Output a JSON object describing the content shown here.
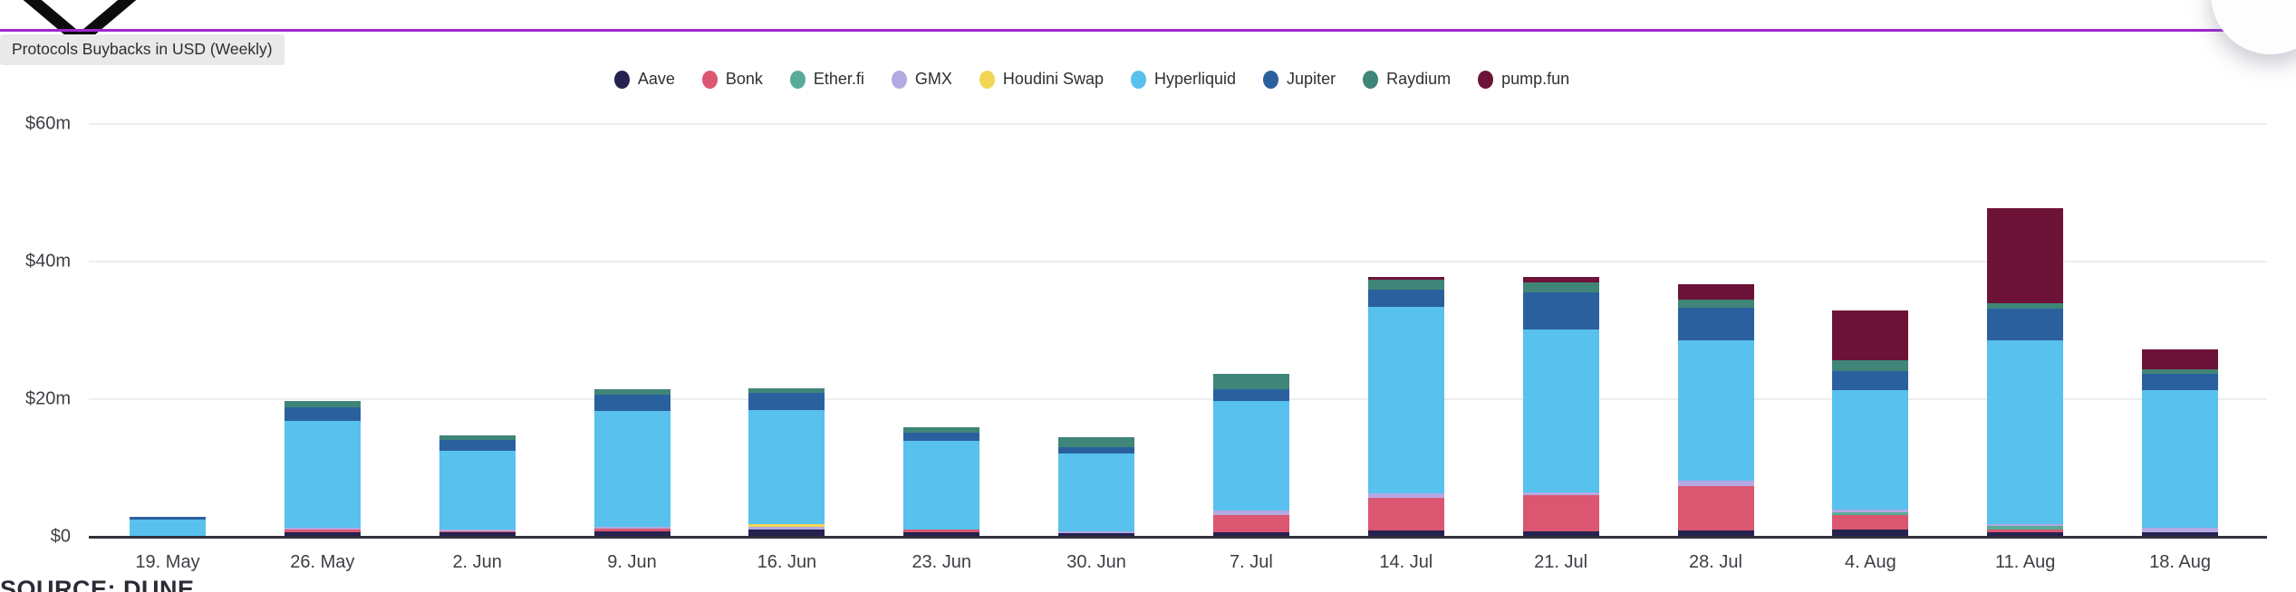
{
  "header": {
    "logo": "brand-chevron-logo",
    "accent_rule_color": "#9c27d0"
  },
  "footer": {
    "source_label": "SOURCE: DUNE"
  },
  "chart_data": {
    "type": "bar",
    "stacked": true,
    "title": "Protocols Buybacks in USD (Weekly)",
    "unit": "USD millions",
    "grid": true,
    "legend_position": "top-center",
    "ylim": [
      0,
      60
    ],
    "yticks": [
      {
        "label": "$60m",
        "value": 60
      },
      {
        "label": "$40m",
        "value": 40
      },
      {
        "label": "$20m",
        "value": 20
      },
      {
        "label": "$0",
        "value": 0
      }
    ],
    "categories": [
      "19. May",
      "26. May",
      "2. Jun",
      "9. Jun",
      "16. Jun",
      "23. Jun",
      "30. Jun",
      "7. Jul",
      "14. Jul",
      "21. Jul",
      "28. Jul",
      "4. Aug",
      "11. Aug",
      "18. Aug"
    ],
    "series": [
      {
        "name": "Aave",
        "color": "#262250",
        "values": [
          0,
          0.7,
          0.6,
          0.8,
          1.0,
          0.7,
          0.5,
          0.7,
          0.9,
          0.8,
          0.9,
          1.0,
          0.7,
          0.6
        ]
      },
      {
        "name": "Bonk",
        "color": "#db5670",
        "values": [
          0,
          0.35,
          0.25,
          0.4,
          0,
          0.3,
          0,
          2.4,
          4.7,
          5.3,
          6.5,
          2.1,
          0.35,
          0
        ]
      },
      {
        "name": "Ether.fi",
        "color": "#58ab97",
        "values": [
          0,
          0,
          0,
          0,
          0,
          0,
          0,
          0,
          0,
          0,
          0,
          0.4,
          0.5,
          0
        ]
      },
      {
        "name": "GMX",
        "color": "#b4a9e2",
        "values": [
          0,
          0.3,
          0.25,
          0.3,
          0.4,
          0,
          0.3,
          0.7,
          0.7,
          0.4,
          0.7,
          0.4,
          0.35,
          0.75
        ]
      },
      {
        "name": "Houdini Swap",
        "color": "#f1d654",
        "values": [
          0,
          0,
          0,
          0,
          0.45,
          0,
          0,
          0,
          0,
          0,
          0,
          0,
          0,
          0
        ]
      },
      {
        "name": "Hyperliquid",
        "color": "#58c1ed",
        "values": [
          2.5,
          15.5,
          11.4,
          16.8,
          16.6,
          13.0,
          11.3,
          15.9,
          27.1,
          23.7,
          20.4,
          17.4,
          26.7,
          20.0
        ]
      },
      {
        "name": "Jupiter",
        "color": "#2b609f",
        "values": [
          0.4,
          2.0,
          1.6,
          2.4,
          2.5,
          1.1,
          0.9,
          1.7,
          2.5,
          5.3,
          4.8,
          2.8,
          4.6,
          2.4
        ]
      },
      {
        "name": "Raydium",
        "color": "#3f8578",
        "values": [
          0,
          0.85,
          0.7,
          0.7,
          0.65,
          0.8,
          1.5,
          2.3,
          1.5,
          1.5,
          1.2,
          1.6,
          0.8,
          0.55
        ]
      },
      {
        "name": "pump.fun",
        "color": "#6d1338",
        "values": [
          0,
          0,
          0,
          0,
          0,
          0,
          0,
          0,
          0.4,
          0.8,
          2.2,
          7.2,
          13.8,
          2.9
        ]
      }
    ],
    "weekly_totals_musd": [
      2.9,
      19.7,
      14.8,
      21.4,
      21.6,
      15.9,
      14.5,
      23.7,
      37.8,
      37.8,
      36.7,
      32.9,
      47.8,
      27.2
    ]
  }
}
